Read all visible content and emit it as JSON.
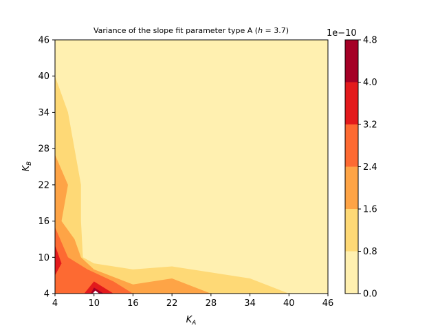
{
  "chart_data": {
    "type": "contourf",
    "title": "Variance of the slope fit parameter type A (h = 3.7)",
    "title_parts": {
      "prefix": "Variance of the slope fit parameter type A (",
      "var": "h",
      "suffix": " = 3.7)"
    },
    "xlabel": {
      "base": "K",
      "sub": "A"
    },
    "ylabel": {
      "base": "K",
      "sub": "B"
    },
    "xlim": [
      4,
      46
    ],
    "ylim": [
      4,
      46
    ],
    "xticks": [
      "4",
      "10",
      "16",
      "22",
      "28",
      "34",
      "40",
      "46"
    ],
    "yticks": [
      "4",
      "10",
      "16",
      "22",
      "28",
      "34",
      "40",
      "46"
    ],
    "colorbar": {
      "exponent_label": "1e−10",
      "levels": [
        0.0,
        0.8,
        1.6,
        2.4,
        3.2,
        4.0,
        4.8
      ],
      "tick_labels": [
        "0.0",
        "0.8",
        "1.6",
        "2.4",
        "3.2",
        "4.0",
        "4.8"
      ],
      "colors": [
        "#fff0b0",
        "#fed976",
        "#fea446",
        "#fd6a32",
        "#e31a1c",
        "#a50026"
      ]
    },
    "regions": [
      {
        "level": 1,
        "boundary": [
          [
            4,
            40
          ],
          [
            6,
            34
          ],
          [
            8,
            22
          ],
          [
            8,
            16
          ],
          [
            8.3,
            10
          ],
          [
            10,
            9
          ],
          [
            16,
            8
          ],
          [
            22,
            8.5
          ],
          [
            28,
            7.5
          ],
          [
            34,
            6.5
          ],
          [
            40,
            4
          ],
          [
            4,
            4
          ]
        ]
      },
      {
        "level": 2,
        "boundary": [
          [
            4,
            27
          ],
          [
            6,
            22
          ],
          [
            5,
            16
          ],
          [
            7,
            13
          ],
          [
            8,
            10
          ],
          [
            10,
            8
          ],
          [
            16,
            5.5
          ],
          [
            22,
            6.5
          ],
          [
            28,
            4
          ],
          [
            4,
            4
          ]
        ]
      },
      {
        "level": 3,
        "boundary": [
          [
            4,
            15
          ],
          [
            6,
            10
          ],
          [
            9,
            8
          ],
          [
            13,
            6
          ],
          [
            16,
            4
          ],
          [
            4,
            4
          ]
        ]
      },
      {
        "level": 4,
        "boundary": [
          [
            4,
            12
          ],
          [
            5,
            9
          ],
          [
            4,
            7
          ]
        ],
        "extra": [
          [
            [
              8.5,
              4
            ],
            [
              10,
              6
            ],
            [
              13,
              4
            ]
          ]
        ]
      },
      {
        "level": 5,
        "boundary": [
          [
            9.5,
            4
          ],
          [
            10,
            5
          ],
          [
            11.5,
            4
          ]
        ]
      }
    ],
    "white_tip": [
      [
        9.8,
        4
      ],
      [
        10.2,
        4.5
      ],
      [
        10.8,
        4
      ]
    ]
  }
}
